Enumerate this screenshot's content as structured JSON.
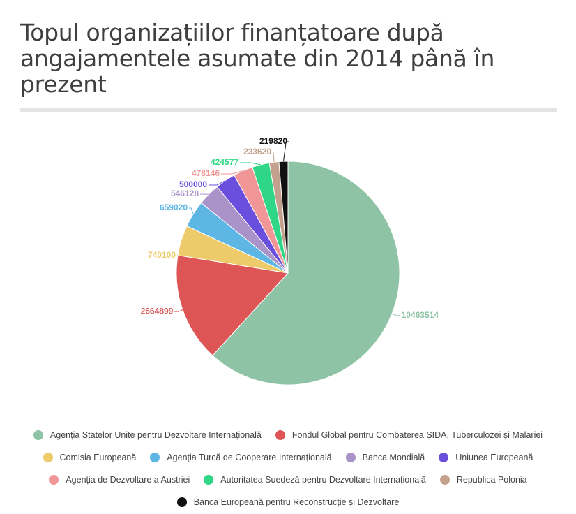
{
  "page": {
    "title": "Topul organizațiilor finanțatoare după angajamentele asumate din 2014 până în prezent"
  },
  "chart_data": {
    "type": "pie",
    "title": "Topul organizațiilor finanțatoare după angajamentele asumate din 2014 până în prezent",
    "legend_position": "bottom",
    "slices": [
      {
        "label": "Agenția Statelor Unite pentru Dezvoltare Internațională",
        "value": 10463514,
        "color": "#8fc3a6"
      },
      {
        "label": "Fondul Global pentru Combaterea SIDA, Tuberculozei și Malariei",
        "value": 2664899,
        "color": "#dd5555"
      },
      {
        "label": "Comisia Europeană",
        "value": 740100,
        "color": "#eecb6a"
      },
      {
        "label": "Agenția Turcă de Cooperare Internațională",
        "value": 659020,
        "color": "#5eb6e4"
      },
      {
        "label": "Banca Mondială",
        "value": 546128,
        "color": "#a993c8"
      },
      {
        "label": "Uniunea Europeană",
        "value": 500000,
        "color": "#6a4fdc"
      },
      {
        "label": "Agenția de Dezvoltare a Austriei",
        "value": 478146,
        "color": "#f09696"
      },
      {
        "label": "Autoritatea Suedeză pentru Dezvoltare Internațională",
        "value": 424577,
        "color": "#2fd686"
      },
      {
        "label": "Republica Polonia",
        "value": 233620,
        "color": "#c4a08e"
      },
      {
        "label": "Banca Europeană pentru Reconstrucție și Dezvoltare",
        "value": 219820,
        "color": "#111111"
      }
    ]
  }
}
